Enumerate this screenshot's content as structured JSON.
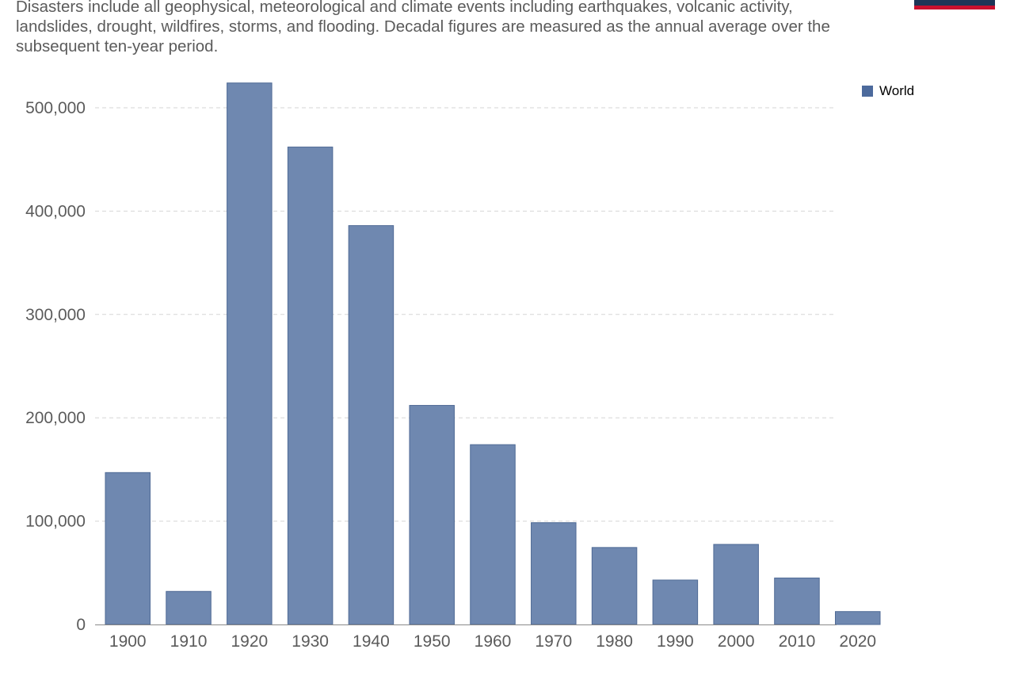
{
  "subtitle": "Disasters include all geophysical, meteorological and climate events including earthquakes, volcanic activity, landslides, drought, wildfires, storms, and flooding. Decadal figures are measured as the annual average over the subsequent ten-year period.",
  "colors": {
    "bar": "#6f88b0",
    "bar_stroke": "#4f6a95",
    "legend": "#4c6a9c",
    "grid": "#d6d6d6",
    "axis": "#8a8a8a",
    "text": "#5b5b5b",
    "logo_navy": "#1d3557",
    "logo_red": "#c8102e"
  },
  "chart_data": {
    "type": "bar",
    "categories": [
      "1900",
      "1910",
      "1920",
      "1930",
      "1940",
      "1950",
      "1960",
      "1970",
      "1980",
      "1990",
      "2000",
      "2010",
      "2020"
    ],
    "series": [
      {
        "name": "World",
        "values": [
          147000,
          32000,
          524000,
          462000,
          386000,
          212000,
          174000,
          98500,
          74500,
          43000,
          77500,
          45000,
          12500
        ]
      }
    ],
    "yticks": [
      0,
      100000,
      200000,
      300000,
      400000,
      500000
    ],
    "ytick_labels": [
      "0",
      "100,000",
      "200,000",
      "300,000",
      "400,000",
      "500,000"
    ],
    "ylim": [
      0,
      530000
    ],
    "grid": true,
    "legend_position": "top-right"
  }
}
